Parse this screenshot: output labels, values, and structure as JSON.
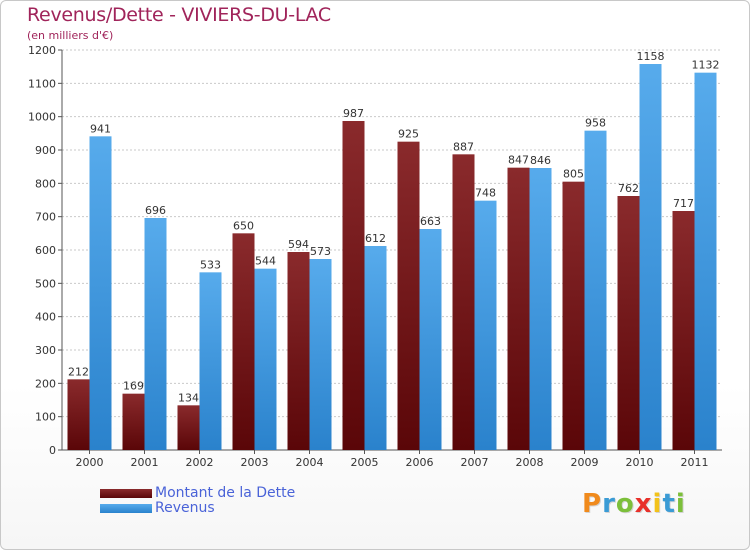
{
  "chart_data": {
    "type": "bar",
    "title": "Revenus/Dette - VIVIERS-DU-LAC",
    "subtitle": "(en milliers d'€)",
    "xlabel": "",
    "ylabel": "",
    "ylim": [
      0,
      1200
    ],
    "yticks": [
      0,
      100,
      200,
      300,
      400,
      500,
      600,
      700,
      800,
      900,
      1000,
      1100,
      1200
    ],
    "grid": true,
    "categories": [
      "2000",
      "2001",
      "2002",
      "2003",
      "2004",
      "2005",
      "2006",
      "2007",
      "2008",
      "2009",
      "2010",
      "2011"
    ],
    "series": [
      {
        "name": "Montant de la Dette",
        "color": "#7b1416",
        "values": [
          212,
          169,
          134,
          650,
          594,
          987,
          925,
          887,
          847,
          805,
          762,
          717
        ]
      },
      {
        "name": "Revenus",
        "color": "#3a96e0",
        "values": [
          941,
          696,
          533,
          544,
          573,
          612,
          663,
          748,
          846,
          958,
          1158,
          1132
        ]
      }
    ]
  },
  "logo": {
    "letters": [
      "P",
      "r",
      "o",
      "x",
      "i",
      "t",
      "i"
    ],
    "colors": [
      "#f08a1c",
      "#3a9bd5",
      "#7cbf3a",
      "#e8302a",
      "#f2c21a",
      "#3a9bd5",
      "#7cbf3a"
    ]
  }
}
